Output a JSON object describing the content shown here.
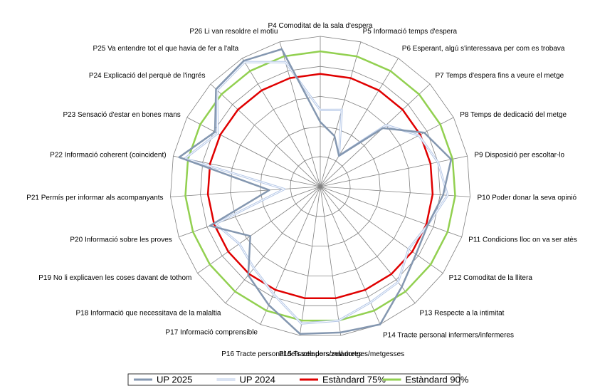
{
  "chart_data": {
    "type": "radar",
    "categories": [
      "P4 Comoditat de la sala d'espera",
      "P5 Informació temps d'espera",
      "P6 Esperant, algú s'interessava per com es trobava",
      "P7 Temps d'espera fins a veure el metge",
      "P8 Temps de dedicació del metge",
      "P9 Disposició per escoltar-lo",
      "P10 Poder donar la seva opinió",
      "P11 Condicions lloc on va ser atès",
      "P12 Comoditat de la llitera",
      "P13 Respecte a la intimitat",
      "P14 Tracte personal infermers/infermeres",
      "P15 Tracte personal metges/metgesses",
      "P16 Tracte personal dels zeladors/zeladores",
      "P17 Informació comprensible",
      "P18 Informació que necessitava de la malaltia",
      "P19 No li explicaven les coses davant de tothom",
      "P20 Informació sobre les proves",
      "P21 Permís per informar als acompanyants",
      "P22 Informació coherent (coincident)",
      "P23 Sensació d'estar en bones mans",
      "P24 Explicació del perquè de l'ingrés",
      "P25 Va entendre tot el que havia de fer a l'alta",
      "P26 Li van resoldre el motiu"
    ],
    "rlim": [
      0,
      100
    ],
    "rings": 5,
    "series": [
      {
        "name": "UP 2025",
        "color": "#8497b0",
        "values": [
          43,
          35,
          24,
          57,
          78,
          89,
          82,
          76,
          78,
          86,
          100,
          98,
          99,
          86,
          76,
          57,
          78,
          34,
          96,
          79,
          95,
          98,
          95
        ]
      },
      {
        "name": "UP 2024",
        "color": "#b4c7e7",
        "values": [
          51,
          53,
          24,
          60,
          74,
          80,
          85,
          76,
          72,
          82,
          84,
          90,
          92,
          78,
          70,
          66,
          74,
          24,
          92,
          77,
          94,
          97,
          86
        ]
      },
      {
        "name": "Estàndard 75%",
        "color": "#e00000",
        "values": [
          75,
          75,
          75,
          75,
          75,
          75,
          75,
          75,
          75,
          75,
          75,
          75,
          75,
          75,
          75,
          75,
          75,
          75,
          75,
          75,
          75,
          75,
          75
        ]
      },
      {
        "name": "Estàndard 90%",
        "color": "#92d050",
        "values": [
          90,
          90,
          90,
          90,
          90,
          90,
          90,
          90,
          90,
          90,
          90,
          90,
          90,
          90,
          90,
          90,
          90,
          90,
          90,
          90,
          90,
          90,
          90
        ]
      }
    ],
    "legend_position": "bottom",
    "grid": true
  }
}
